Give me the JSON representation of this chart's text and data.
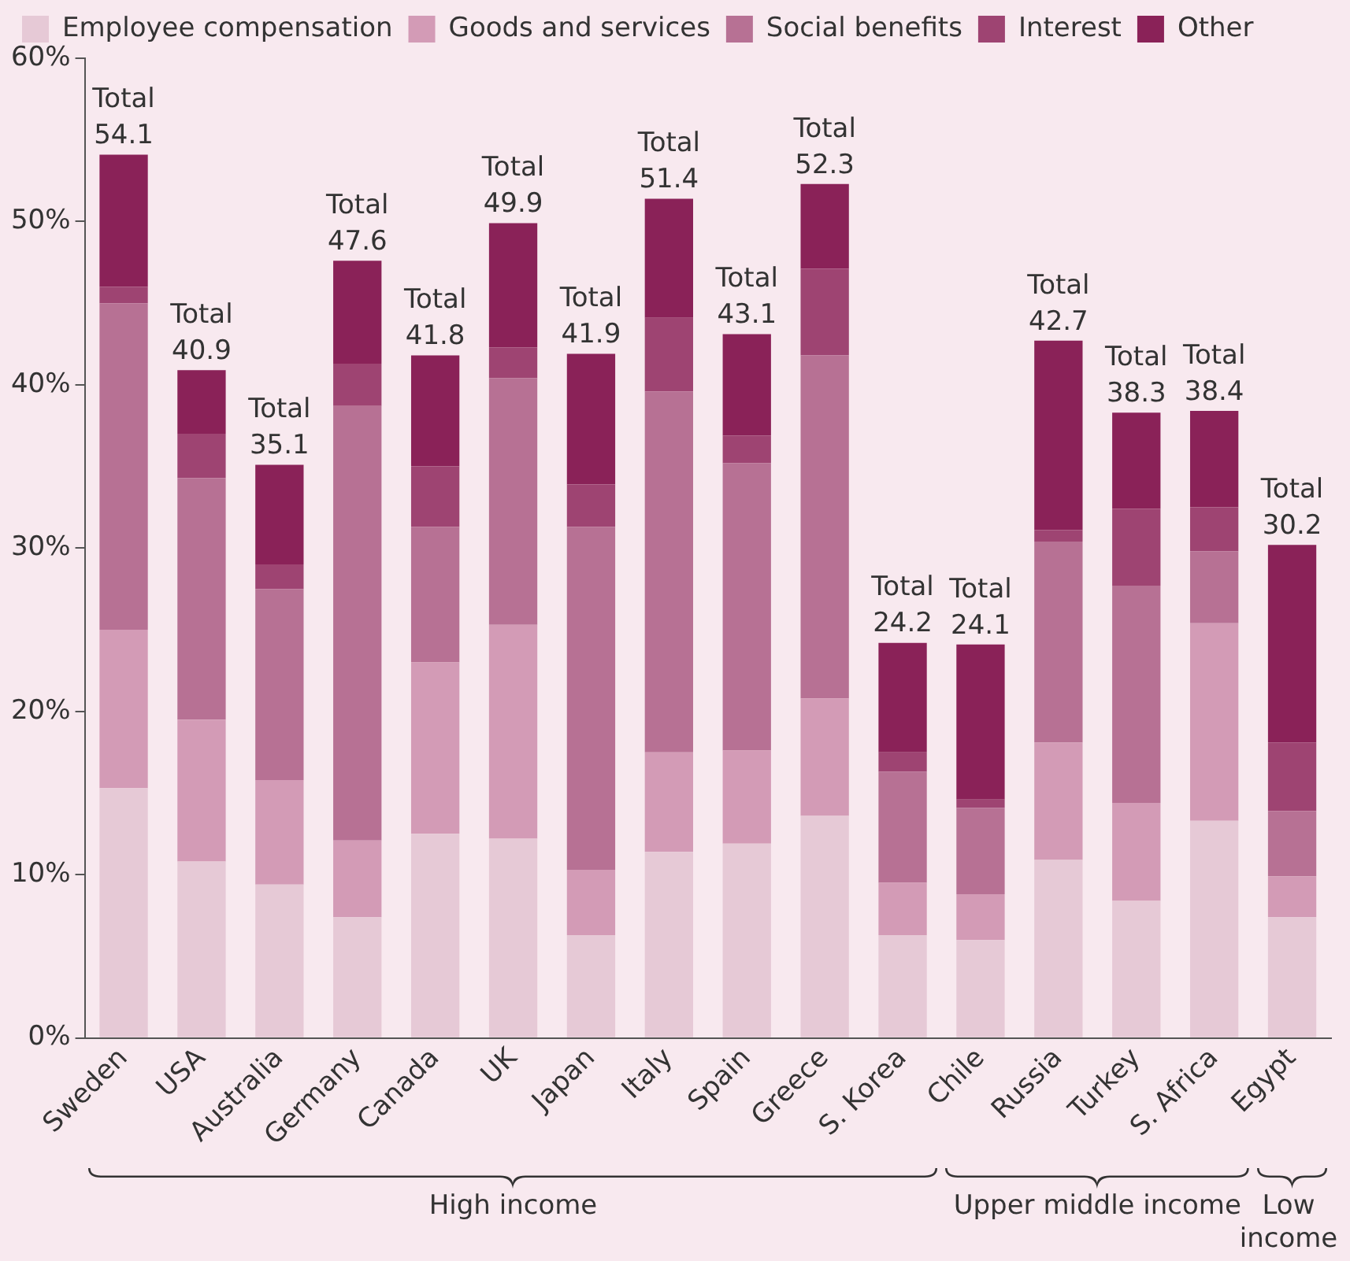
{
  "chart_data": {
    "type": "bar",
    "stacked": true,
    "categories": [
      "Sweden",
      "USA",
      "Australia",
      "Germany",
      "Canada",
      "UK",
      "Japan",
      "Italy",
      "Spain",
      "Greece",
      "S. Korea",
      "Chile",
      "Russia",
      "Turkey",
      "S. Africa",
      "Egypt"
    ],
    "series": [
      {
        "name": "Employee compensation",
        "color": "#e6c9d6",
        "values": [
          15.3,
          10.8,
          9.4,
          7.4,
          12.5,
          12.2,
          6.3,
          11.4,
          11.9,
          13.6,
          6.3,
          6.0,
          10.9,
          8.4,
          13.3,
          7.4
        ]
      },
      {
        "name": "Goods and services",
        "color": "#d39bb6",
        "values": [
          9.7,
          8.7,
          6.4,
          4.7,
          10.5,
          13.1,
          4.0,
          6.1,
          5.7,
          7.2,
          3.2,
          2.8,
          7.2,
          6.0,
          12.1,
          2.5
        ]
      },
      {
        "name": "Social benefits",
        "color": "#b77194",
        "values": [
          20.0,
          14.8,
          11.7,
          26.6,
          8.3,
          15.1,
          21.0,
          22.1,
          17.6,
          21.0,
          6.8,
          5.3,
          12.3,
          13.3,
          4.4,
          4.0
        ]
      },
      {
        "name": "Interest",
        "color": "#9e4472",
        "values": [
          1.0,
          2.7,
          1.5,
          2.6,
          3.7,
          1.9,
          2.6,
          4.5,
          1.7,
          5.3,
          1.2,
          0.5,
          0.7,
          4.7,
          2.7,
          4.2
        ]
      },
      {
        "name": "Other",
        "color": "#8a2258",
        "values": [
          8.1,
          3.9,
          6.1,
          6.3,
          6.8,
          7.6,
          8.0,
          7.3,
          6.2,
          5.2,
          6.7,
          9.5,
          11.6,
          5.9,
          5.9,
          12.1
        ]
      }
    ],
    "totals": [
      "Total 54.1",
      "Total 40.9",
      "Total 35.1",
      "Total 47.6",
      "Total 41.8",
      "Total 49.9",
      "Total 41.9",
      "Total 51.4",
      "Total 43.1",
      "Total 52.3",
      "Total 24.2",
      "Total 24.1",
      "Total 42.7",
      "Total 38.3",
      "Total 38.4",
      "Total 30.2"
    ],
    "ylim": [
      0,
      60
    ],
    "yticks": [
      {
        "value": 0,
        "label": "0%"
      },
      {
        "value": 10,
        "label": "10%"
      },
      {
        "value": 20,
        "label": "20%"
      },
      {
        "value": 30,
        "label": "30%"
      },
      {
        "value": 40,
        "label": "40%"
      },
      {
        "value": 50,
        "label": "50%"
      },
      {
        "value": 60,
        "label": "60%"
      }
    ],
    "annotations": [
      "High income",
      "Upper middle income",
      "Low income"
    ],
    "legend": "top",
    "grid": false
  }
}
